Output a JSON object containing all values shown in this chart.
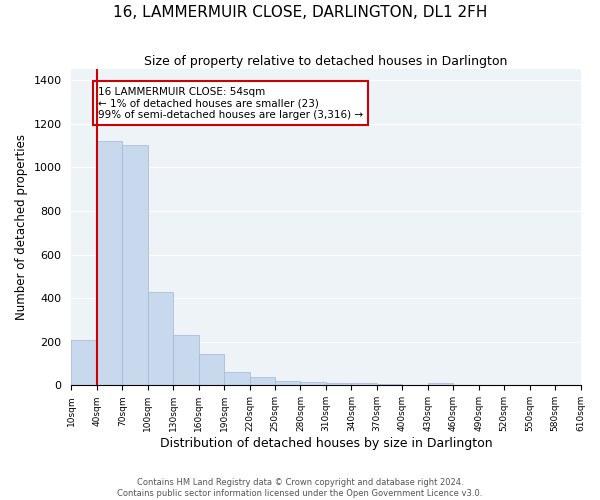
{
  "title": "16, LAMMERMUIR CLOSE, DARLINGTON, DL1 2FH",
  "subtitle": "Size of property relative to detached houses in Darlington",
  "xlabel": "Distribution of detached houses by size in Darlington",
  "ylabel": "Number of detached properties",
  "bar_color": "#c8d9ee",
  "bar_edge_color": "#a0b8d8",
  "marker_color": "#cc0000",
  "annotation_lines": [
    "16 LAMMERMUIR CLOSE: 54sqm",
    "← 1% of detached houses are smaller (23)",
    "99% of semi-detached houses are larger (3,316) →"
  ],
  "bin_labels": [
    "10sqm",
    "40sqm",
    "70sqm",
    "100sqm",
    "130sqm",
    "160sqm",
    "190sqm",
    "220sqm",
    "250sqm",
    "280sqm",
    "310sqm",
    "340sqm",
    "370sqm",
    "400sqm",
    "430sqm",
    "460sqm",
    "490sqm",
    "520sqm",
    "550sqm",
    "580sqm",
    "610sqm"
  ],
  "bar_heights": [
    210,
    1120,
    1100,
    430,
    230,
    145,
    60,
    40,
    20,
    15,
    12,
    10,
    8,
    0,
    10,
    0,
    0,
    0,
    0,
    0
  ],
  "ylim": [
    0,
    1450
  ],
  "yticks": [
    0,
    200,
    400,
    600,
    800,
    1000,
    1200,
    1400
  ],
  "footer_line1": "Contains HM Land Registry data © Crown copyright and database right 2024.",
  "footer_line2": "Contains public sector information licensed under the Open Government Licence v3.0.",
  "figsize": [
    6.0,
    5.0
  ],
  "dpi": 100
}
